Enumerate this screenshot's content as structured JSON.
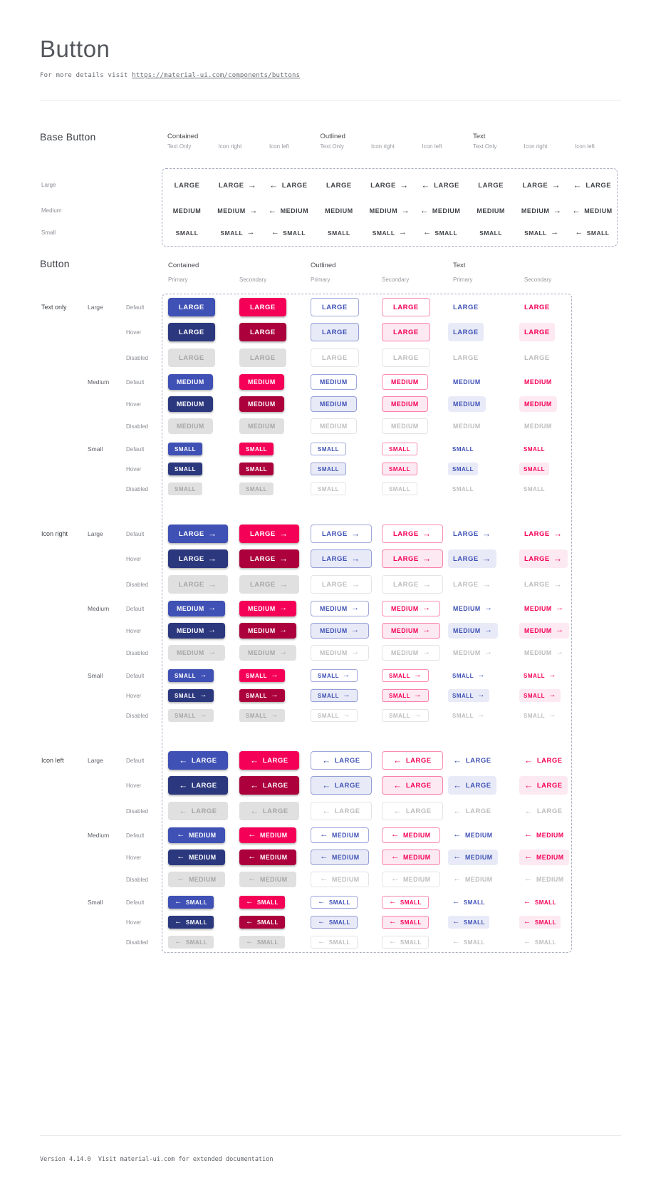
{
  "page": {
    "title": "Button",
    "subtitle_prefix": "For more details visit ",
    "subtitle_link": "https://material-ui.com/components/buttons",
    "footer": "Version 4.14.0  Visit material-ui.com for extended documentation"
  },
  "icons": {
    "arrow_right": "→",
    "arrow_left": "←"
  },
  "colors": {
    "primary": "#3f51b5",
    "primary_hover": "#2c387e",
    "secondary": "#f50057",
    "secondary_hover": "#ab003c",
    "primary_tint": "#e8ebf7",
    "secondary_tint": "#fde9f1",
    "outlined_primary_border": "rgba(63,81,181,0.5)",
    "outlined_secondary_border": "rgba(245,0,87,0.45)",
    "disabled_bg": "#e0e0e0",
    "disabled_text": "#a6a6a6",
    "disabled_text_light": "#bdbdbd",
    "disabled_border": "#e4e4e4",
    "base_btn_text": "#3f4247",
    "dash": "#a9aec2",
    "divider": "#e9e9e9"
  },
  "base_button": {
    "section_title": "Base Button",
    "group_headers": [
      "Contained",
      "Outlined",
      "Text"
    ],
    "sub_headers": [
      "Text Only",
      "Icon right",
      "Icon left"
    ],
    "row_labels": [
      "Large",
      "Medium",
      "Small"
    ],
    "rows": [
      {
        "label": "LARGE"
      },
      {
        "label": "MEDIUM"
      },
      {
        "label": "SMALL"
      }
    ]
  },
  "button_section": {
    "section_title": "Button",
    "group_headers": [
      "Contained",
      "Outlined",
      "Text"
    ],
    "sub_headers": [
      "Primary",
      "Secondary"
    ],
    "groups": [
      {
        "label": "Text only",
        "icon": "none"
      },
      {
        "label": "Icon right",
        "icon": "right"
      },
      {
        "label": "Icon left",
        "icon": "left"
      }
    ],
    "sizes": [
      {
        "label": "Large",
        "button_text": "LARGE"
      },
      {
        "label": "Medium",
        "button_text": "MEDIUM"
      },
      {
        "label": "Small",
        "button_text": "SMALL"
      }
    ],
    "states": [
      {
        "label": "Default",
        "key": "default"
      },
      {
        "label": "Hover",
        "key": "hover"
      },
      {
        "label": "Disabled",
        "key": "disabled"
      }
    ],
    "style_columns": [
      {
        "variant": "contained",
        "color": "primary"
      },
      {
        "variant": "contained",
        "color": "secondary"
      },
      {
        "variant": "outlined",
        "color": "primary"
      },
      {
        "variant": "outlined",
        "color": "secondary"
      },
      {
        "variant": "text",
        "color": "primary"
      },
      {
        "variant": "text",
        "color": "secondary"
      }
    ]
  }
}
